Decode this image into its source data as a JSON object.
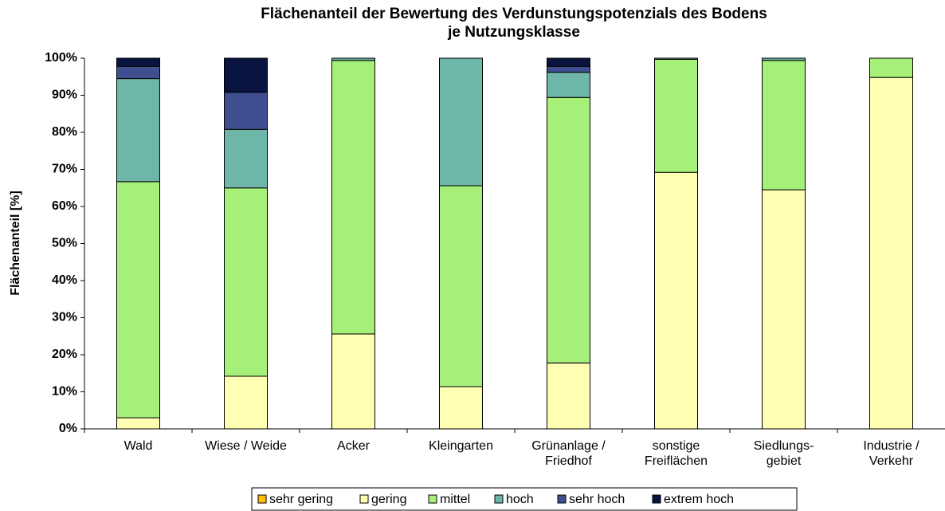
{
  "chart_data": {
    "type": "stacked_bar",
    "title": "Flächenanteil der Bewertung des Verdunstungspotenzials des Bodens\nje Nutzungsklasse",
    "y_label": "Flächenanteil [%]",
    "categories": [
      "Wald",
      "Wiese / Weide",
      "Acker",
      "Kleingarten",
      "Grünanlage /\nFriedhof",
      "sonstige\nFreiflächen",
      "Siedlungs-\ngebiet",
      "Industrie /\nVerkehr"
    ],
    "series": [
      {
        "name": "sehr gering",
        "color": "#ffc000",
        "values": [
          0,
          0,
          0,
          0,
          0,
          0,
          0,
          0
        ]
      },
      {
        "name": "gering",
        "color": "#ffffb3",
        "values": [
          3,
          14.2,
          25.6,
          11.4,
          17.8,
          69.2,
          64.5,
          94.8
        ]
      },
      {
        "name": "mittel",
        "color": "#a6f07a",
        "values": [
          63.7,
          50.8,
          73.8,
          54.2,
          71.6,
          30.5,
          34.9,
          5.2
        ]
      },
      {
        "name": "hoch",
        "color": "#6db6a8",
        "values": [
          27.8,
          15.8,
          0.6,
          34.4,
          6.8,
          0.3,
          0.6,
          0
        ]
      },
      {
        "name": "sehr hoch",
        "color": "#3f4f8f",
        "values": [
          3.3,
          10,
          0,
          0,
          1.6,
          0,
          0,
          0
        ]
      },
      {
        "name": "extrem hoch",
        "color": "#0a1440",
        "values": [
          2.2,
          9.2,
          0,
          0,
          2.2,
          0,
          0,
          0
        ]
      }
    ],
    "ylim": [
      0,
      100
    ],
    "yticks": [
      {
        "value": 0,
        "label": "0%"
      },
      {
        "value": 10,
        "label": "10%"
      },
      {
        "value": 20,
        "label": "20%"
      },
      {
        "value": 30,
        "label": "30%"
      },
      {
        "value": 40,
        "label": "40%"
      },
      {
        "value": 50,
        "label": "50%"
      },
      {
        "value": 60,
        "label": "60%"
      },
      {
        "value": 70,
        "label": "70%"
      },
      {
        "value": 80,
        "label": "80%"
      },
      {
        "value": 90,
        "label": "90%"
      },
      {
        "value": 100,
        "label": "100%"
      }
    ],
    "legend": "bottom"
  }
}
